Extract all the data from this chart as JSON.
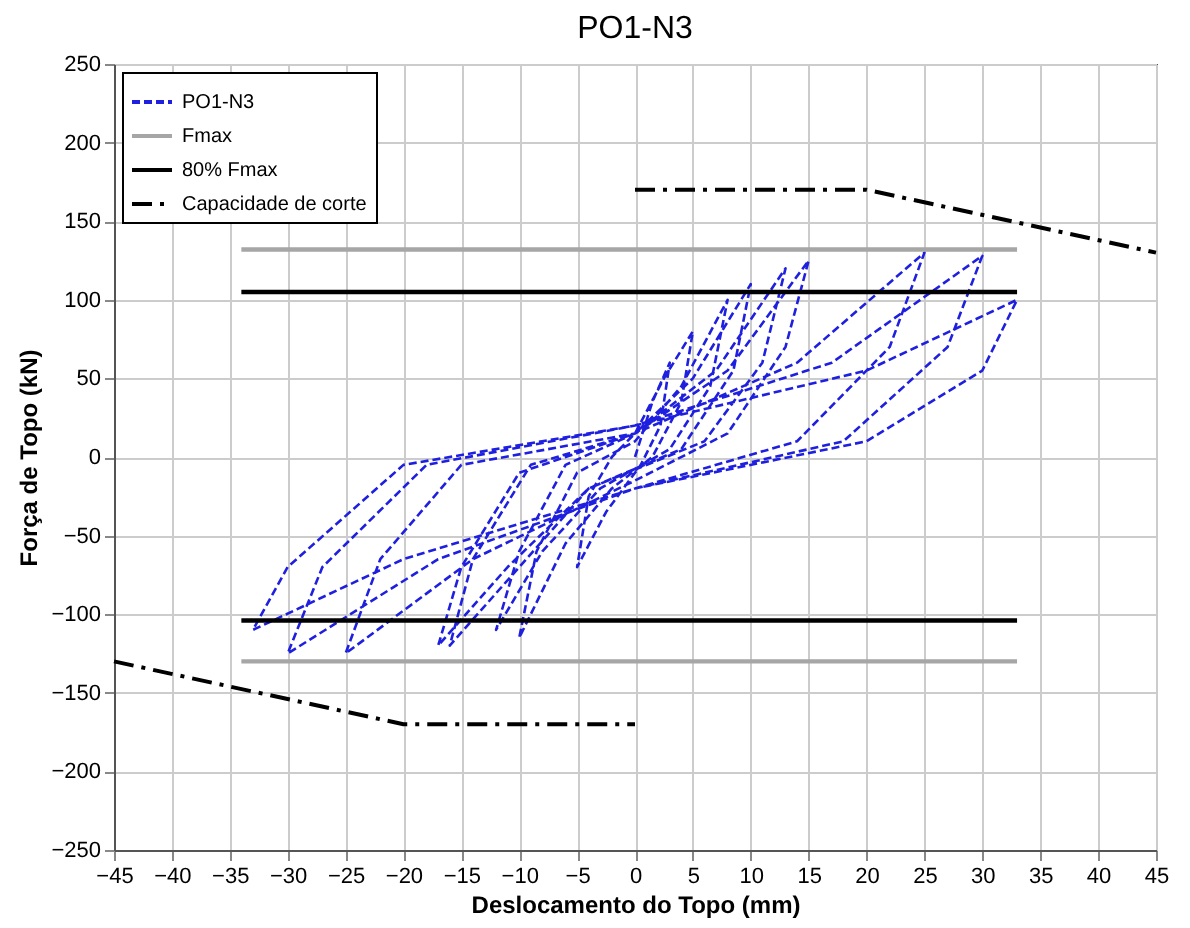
{
  "chart_data": {
    "type": "line",
    "title": "PO1-N3",
    "xlabel": "Deslocamento do Topo (mm)",
    "ylabel": "Força de Topo (kN)",
    "xlim": [
      -45,
      45
    ],
    "xticks": [
      -45,
      -40,
      -35,
      -30,
      -25,
      -20,
      -15,
      -10,
      -5,
      0,
      5,
      10,
      15,
      20,
      25,
      30,
      35,
      40,
      45
    ],
    "ylim": [
      -250,
      250
    ],
    "yticks": [
      -250,
      -200,
      -150,
      -100,
      -50,
      0,
      50,
      100,
      150,
      200,
      250
    ],
    "grid": true,
    "legend": "top left",
    "marker": "none",
    "series": [
      {
        "name": "PO1-N3",
        "color": "#1f1fe0",
        "line_style": "dashed",
        "x": [
          0,
          1.5,
          3,
          2.2,
          0.5,
          -2.5,
          -5,
          -4,
          -2,
          0,
          2.5,
          5,
          4,
          1.5,
          -2,
          -6,
          -10,
          -8.5,
          -5,
          0,
          4,
          8,
          6.5,
          3,
          -3,
          -8,
          -12,
          -10,
          -6,
          0,
          5,
          10,
          8.5,
          4,
          -4,
          -10,
          -16,
          -14,
          -9,
          0,
          7,
          13,
          11,
          6,
          -4,
          -11,
          -17,
          -15,
          -10,
          0,
          8,
          15,
          13,
          8,
          0,
          -14,
          -25,
          -22,
          -15,
          0,
          14,
          25,
          22,
          14,
          0,
          -17,
          -30,
          -27,
          -18,
          0,
          17,
          30,
          27,
          18,
          0,
          -20,
          -33,
          -30,
          -20,
          0,
          20,
          33,
          30,
          20,
          0
        ],
        "values": [
          0,
          35,
          60,
          20,
          -5,
          -35,
          -70,
          -25,
          0,
          15,
          50,
          80,
          35,
          0,
          -20,
          -55,
          -115,
          -60,
          -10,
          10,
          45,
          100,
          45,
          5,
          -20,
          -60,
          -110,
          -60,
          -5,
          15,
          50,
          110,
          55,
          5,
          -20,
          -70,
          -120,
          -65,
          -5,
          15,
          55,
          120,
          60,
          10,
          -20,
          -70,
          -120,
          -70,
          -10,
          15,
          55,
          125,
          70,
          15,
          -15,
          -65,
          -125,
          -65,
          -5,
          15,
          60,
          130,
          70,
          10,
          -20,
          -65,
          -125,
          -70,
          -5,
          20,
          60,
          128,
          70,
          10,
          -20,
          -65,
          -110,
          -70,
          -5,
          20,
          55,
          100,
          55,
          10,
          -20
        ]
      },
      {
        "name": "Fmax",
        "color": "#a6a6a6",
        "line_style": "solid",
        "x": [
          -34,
          33
        ],
        "values": [
          132,
          132
        ]
      },
      {
        "color": "#a6a6a6",
        "line_style": "solid",
        "x": [
          -34,
          33
        ],
        "values": [
          -130,
          -130
        ]
      },
      {
        "name": "80% Fmax",
        "color": "#000000",
        "line_style": "solid",
        "x": [
          -34,
          33
        ],
        "values": [
          105,
          105
        ]
      },
      {
        "color": "#000000",
        "line_style": "solid",
        "x": [
          -34,
          33
        ],
        "values": [
          -104,
          -104
        ]
      },
      {
        "name": "Capacidade de corte",
        "color": "#000000",
        "line_style": "dashdot",
        "x": [
          0,
          20,
          45
        ],
        "values": [
          170,
          170,
          130
        ]
      },
      {
        "color": "#000000",
        "line_style": "dashdot",
        "x": [
          -45,
          -20,
          0
        ],
        "values": [
          -130,
          -170,
          -170
        ]
      }
    ]
  }
}
